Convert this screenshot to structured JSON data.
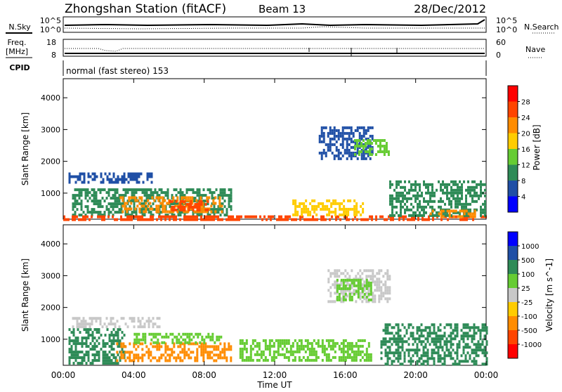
{
  "header": {
    "station": "Zhongshan Station (fitACF)",
    "beam": "Beam 13",
    "date": "28/Dec/2012"
  },
  "panels": {
    "nsky": {
      "label": "N.Sky",
      "tick_top": "10^5",
      "tick_bottom": "10^0",
      "right_tick_top": "10^5",
      "right_tick_bottom": "10^0",
      "right_label": "N.Search"
    },
    "freq": {
      "label_line1": "Freq.",
      "label_line2": "[MHz]",
      "tick_top": "18",
      "tick_bottom": "8",
      "right_tick_top": "60",
      "right_tick_bottom": "0",
      "right_label": "Nave"
    },
    "cpid": {
      "label": "CPID",
      "value": "normal (fast stereo) 153"
    }
  },
  "colors": {
    "power": [
      "#0000ff",
      "#1f4fa6",
      "#2e8b57",
      "#66cc33",
      "#ffcc00",
      "#ff8c00",
      "#ff4500",
      "#ff0000"
    ],
    "velocity": [
      "#ff0000",
      "#ff4500",
      "#ff8c00",
      "#ffcc00",
      "#c8c8c8",
      "#66cc33",
      "#2e8b57",
      "#1f4fa6",
      "#0000ff"
    ]
  },
  "chart_data": [
    {
      "type": "heatmap",
      "name": "power",
      "ylabel": "Slant Range [km]",
      "xlabel": "Time UT",
      "x_ticks": [
        "00:00",
        "04:00",
        "08:00",
        "12:00",
        "16:00",
        "20:00",
        "00:00"
      ],
      "y_ticks": [
        1000,
        2000,
        3000,
        4000
      ],
      "ylim": [
        180,
        4600
      ],
      "xlim_hours": [
        0,
        24
      ],
      "colorbar": {
        "label": "Power [dB]",
        "ticks": [
          4,
          8,
          12,
          16,
          20,
          24,
          28
        ]
      },
      "regions": [
        {
          "t0": 0.5,
          "t1": 9.5,
          "r0": 280,
          "r1": 1150,
          "v": 12
        },
        {
          "t0": 3.2,
          "t1": 9.0,
          "r0": 420,
          "r1": 900,
          "v": 24
        },
        {
          "t0": 6.0,
          "t1": 8.3,
          "r0": 450,
          "r1": 780,
          "v": 28
        },
        {
          "t0": 0.0,
          "t1": 24.0,
          "r0": 180,
          "r1": 300,
          "v": 26
        },
        {
          "t0": 0.3,
          "t1": 5.0,
          "r0": 1350,
          "r1": 1650,
          "v": 6
        },
        {
          "t0": 13.0,
          "t1": 17.0,
          "r0": 300,
          "r1": 800,
          "v": 20
        },
        {
          "t0": 14.5,
          "t1": 17.5,
          "r0": 2100,
          "r1": 3100,
          "v": 8
        },
        {
          "t0": 16.5,
          "t1": 18.5,
          "r0": 2200,
          "r1": 2700,
          "v": 14
        },
        {
          "t0": 18.5,
          "t1": 24.0,
          "r0": 300,
          "r1": 1400,
          "v": 10
        },
        {
          "t0": 20.8,
          "t1": 23.5,
          "r0": 220,
          "r1": 480,
          "v": 24
        }
      ]
    },
    {
      "type": "heatmap",
      "name": "velocity",
      "ylabel": "Slant Range [km]",
      "xlabel": "Time UT",
      "x_ticks": [
        "00:00",
        "04:00",
        "08:00",
        "12:00",
        "16:00",
        "20:00",
        "00:00"
      ],
      "y_ticks": [
        1000,
        2000,
        3000,
        4000
      ],
      "ylim": [
        180,
        4600
      ],
      "xlim_hours": [
        0,
        24
      ],
      "colorbar": {
        "label": "Velocity [m s^-1]",
        "ticks": [
          "1000",
          "500",
          "100",
          "25",
          "-25",
          "-100",
          "-500",
          "-1000"
        ]
      },
      "regions": [
        {
          "t0": 0.3,
          "t1": 3.5,
          "r0": 250,
          "r1": 1350,
          "v": 300
        },
        {
          "t0": 3.0,
          "t1": 9.5,
          "r0": 300,
          "r1": 900,
          "v": -150
        },
        {
          "t0": 4.0,
          "t1": 9.0,
          "r0": 900,
          "r1": 1200,
          "v": 60
        },
        {
          "t0": 0.5,
          "t1": 5.5,
          "r0": 1400,
          "r1": 1700,
          "v": 0
        },
        {
          "t0": 10.0,
          "t1": 17.5,
          "r0": 300,
          "r1": 1000,
          "v": 60
        },
        {
          "t0": 15.0,
          "t1": 18.5,
          "r0": 2200,
          "r1": 3200,
          "v": 0
        },
        {
          "t0": 15.5,
          "t1": 17.5,
          "r0": 2200,
          "r1": 2900,
          "v": 60
        },
        {
          "t0": 18.0,
          "t1": 24.0,
          "r0": 200,
          "r1": 1500,
          "v": 300
        }
      ]
    }
  ]
}
